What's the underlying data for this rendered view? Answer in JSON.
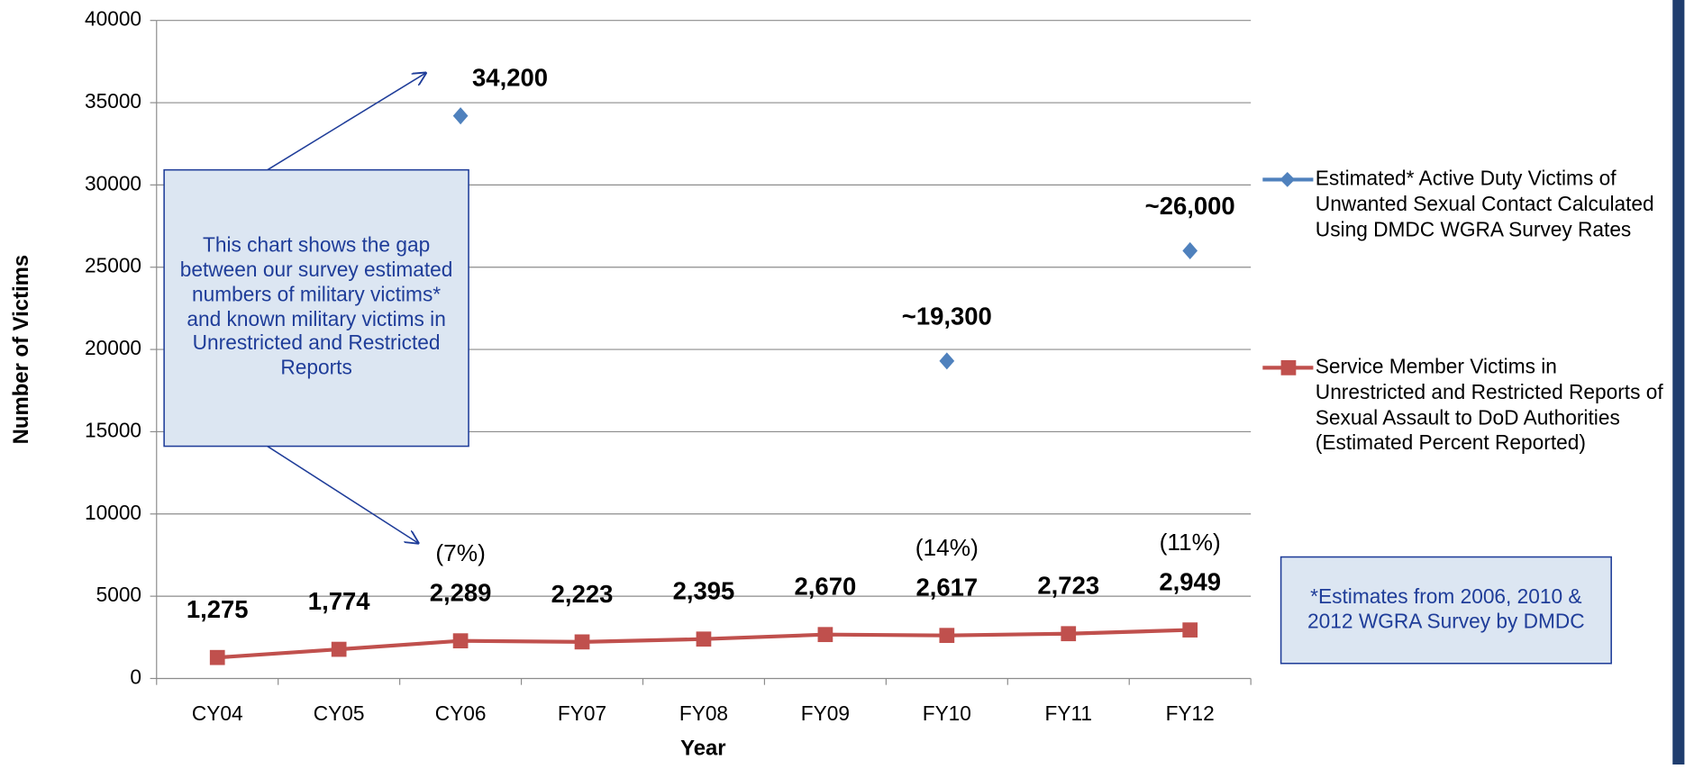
{
  "chart_data": {
    "type": "line",
    "categories": [
      "CY04",
      "CY05",
      "CY06",
      "FY07",
      "FY08",
      "FY09",
      "FY10",
      "FY11",
      "FY12"
    ],
    "xlabel": "Year",
    "ylabel": "Number of Victims",
    "ylim": [
      0,
      40000
    ],
    "yticks": [
      0,
      5000,
      10000,
      15000,
      20000,
      25000,
      30000,
      35000,
      40000
    ],
    "grid": true,
    "legend": "right",
    "series": [
      {
        "name": "Estimated* Active Duty Victims of Unwanted Sexual Contact Calculated Using DMDC WGRA Survey Rates",
        "color": "#4f81bd",
        "marker": "diamond",
        "line": false,
        "values": [
          null,
          null,
          34200,
          null,
          null,
          null,
          19300,
          null,
          26000
        ],
        "value_labels": [
          null,
          null,
          "34,200",
          null,
          null,
          null,
          "~19,300",
          null,
          "~26,000"
        ]
      },
      {
        "name": "Service Member Victims in Unrestricted and Restricted Reports of Sexual Assault to DoD Authorities\n(Estimated Percent Reported)",
        "color": "#c0504d",
        "marker": "square",
        "line": true,
        "values": [
          1275,
          1774,
          2289,
          2223,
          2395,
          2670,
          2617,
          2723,
          2949
        ],
        "value_labels": [
          "1,275",
          "1,774",
          "2,289",
          "2,223",
          "2,395",
          "2,670",
          "2,617",
          "2,723",
          "2,949"
        ],
        "percent_labels": [
          null,
          null,
          "(7%)",
          null,
          null,
          null,
          "(14%)",
          null,
          "(11%)"
        ]
      }
    ],
    "annotation": "This chart shows the gap between our survey estimated numbers of military victims* and known military victims in Unrestricted and Restricted Reports",
    "footnote": "*Estimates from 2006, 2010 & 2012 WGRA Survey by DMDC"
  }
}
